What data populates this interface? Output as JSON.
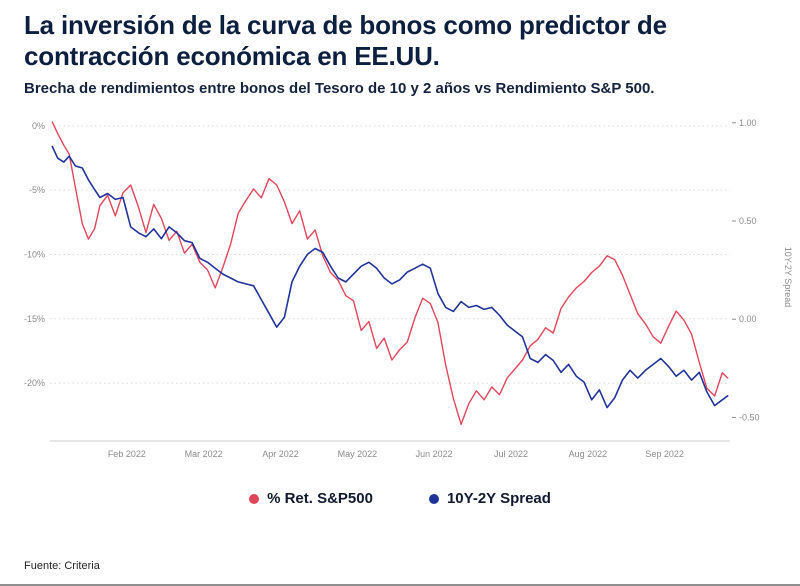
{
  "colors": {
    "red": "#e0465a",
    "blue": "#20339b",
    "title": "#0c1f3f",
    "grid": "#d9d9d9",
    "axis_text": "#8c8c8c",
    "axis_line": "#cccccc"
  },
  "footer": {
    "source": "Fuente: Criteria"
  },
  "chart_data": {
    "type": "line",
    "title": "La inversión de la curva de bonos como predictor de contracción económica en EE.UU.",
    "subtitle": "Brecha de rendimientos entre bonos del Tesoro de 10 y 2 años vs Rendimiento S&P 500.",
    "grid": "horizontal-dotted",
    "legend_position": "bottom-center",
    "x_axis": {
      "range": [
        0,
        8.85
      ],
      "ticks": [
        1,
        2,
        3,
        4,
        5,
        6,
        7,
        8
      ],
      "tick_labels": [
        "Feb 2022",
        "Mar 2022",
        "Apr 2022",
        "May 2022",
        "Jun 2022",
        "Jul 2022",
        "Aug 2022",
        "Sep 2022"
      ]
    },
    "left_axis": {
      "range": [
        -24.5,
        1
      ],
      "ticks": [
        0,
        -5,
        -10,
        -15,
        -20
      ],
      "tick_labels": [
        "0%",
        "-5%",
        "-10%",
        "-15%",
        "-20%"
      ],
      "unit": "percent YTD return"
    },
    "right_axis": {
      "range": [
        -0.62,
        1.05
      ],
      "ticks": [
        1.0,
        0.5,
        0.0,
        -0.5
      ],
      "tick_labels": [
        "1.00",
        "0.50",
        "0.00",
        "-0.50"
      ],
      "title": "10Y-2Y Spread"
    },
    "series": [
      {
        "name": "% Ret. S&P500",
        "axis": "left",
        "color_key": "red",
        "points": [
          [
            0.03,
            0.3
          ],
          [
            0.1,
            -0.6
          ],
          [
            0.18,
            -1.5
          ],
          [
            0.25,
            -2.2
          ],
          [
            0.33,
            -4.8
          ],
          [
            0.42,
            -7.6
          ],
          [
            0.5,
            -8.8
          ],
          [
            0.58,
            -8.0
          ],
          [
            0.65,
            -6.2
          ],
          [
            0.75,
            -5.4
          ],
          [
            0.85,
            -7.0
          ],
          [
            0.95,
            -5.2
          ],
          [
            1.05,
            -4.6
          ],
          [
            1.15,
            -6.3
          ],
          [
            1.25,
            -8.3
          ],
          [
            1.35,
            -6.1
          ],
          [
            1.45,
            -7.2
          ],
          [
            1.55,
            -8.9
          ],
          [
            1.65,
            -8.2
          ],
          [
            1.75,
            -9.9
          ],
          [
            1.85,
            -9.2
          ],
          [
            1.95,
            -10.6
          ],
          [
            2.05,
            -11.2
          ],
          [
            2.15,
            -12.6
          ],
          [
            2.25,
            -11.0
          ],
          [
            2.35,
            -9.2
          ],
          [
            2.45,
            -6.8
          ],
          [
            2.55,
            -5.8
          ],
          [
            2.65,
            -4.9
          ],
          [
            2.75,
            -5.6
          ],
          [
            2.85,
            -4.1
          ],
          [
            2.95,
            -4.6
          ],
          [
            3.05,
            -5.9
          ],
          [
            3.15,
            -7.6
          ],
          [
            3.25,
            -6.6
          ],
          [
            3.35,
            -8.8
          ],
          [
            3.45,
            -8.1
          ],
          [
            3.55,
            -10.1
          ],
          [
            3.65,
            -11.4
          ],
          [
            3.75,
            -12.0
          ],
          [
            3.85,
            -13.2
          ],
          [
            3.95,
            -13.6
          ],
          [
            4.05,
            -15.9
          ],
          [
            4.15,
            -15.2
          ],
          [
            4.25,
            -17.3
          ],
          [
            4.35,
            -16.5
          ],
          [
            4.45,
            -18.2
          ],
          [
            4.55,
            -17.4
          ],
          [
            4.65,
            -16.8
          ],
          [
            4.75,
            -14.9
          ],
          [
            4.85,
            -13.4
          ],
          [
            4.95,
            -13.8
          ],
          [
            5.05,
            -15.3
          ],
          [
            5.15,
            -18.6
          ],
          [
            5.25,
            -21.2
          ],
          [
            5.35,
            -23.2
          ],
          [
            5.45,
            -21.6
          ],
          [
            5.55,
            -20.6
          ],
          [
            5.65,
            -21.3
          ],
          [
            5.75,
            -20.3
          ],
          [
            5.85,
            -20.9
          ],
          [
            5.95,
            -19.6
          ],
          [
            6.05,
            -18.9
          ],
          [
            6.15,
            -18.2
          ],
          [
            6.25,
            -17.1
          ],
          [
            6.35,
            -16.6
          ],
          [
            6.45,
            -15.7
          ],
          [
            6.55,
            -16.1
          ],
          [
            6.65,
            -14.2
          ],
          [
            6.75,
            -13.3
          ],
          [
            6.85,
            -12.6
          ],
          [
            6.95,
            -12.1
          ],
          [
            7.05,
            -11.4
          ],
          [
            7.15,
            -10.9
          ],
          [
            7.25,
            -10.1
          ],
          [
            7.35,
            -10.4
          ],
          [
            7.45,
            -11.6
          ],
          [
            7.55,
            -13.1
          ],
          [
            7.65,
            -14.6
          ],
          [
            7.75,
            -15.4
          ],
          [
            7.85,
            -16.4
          ],
          [
            7.95,
            -16.9
          ],
          [
            8.05,
            -15.6
          ],
          [
            8.15,
            -14.4
          ],
          [
            8.25,
            -15.1
          ],
          [
            8.35,
            -16.2
          ],
          [
            8.45,
            -18.4
          ],
          [
            8.55,
            -20.4
          ],
          [
            8.65,
            -21.0
          ],
          [
            8.75,
            -19.2
          ],
          [
            8.82,
            -19.6
          ]
        ]
      },
      {
        "name": "10Y-2Y Spread",
        "axis": "right",
        "color_key": "blue",
        "points": [
          [
            0.03,
            0.88
          ],
          [
            0.1,
            0.82
          ],
          [
            0.18,
            0.8
          ],
          [
            0.25,
            0.83
          ],
          [
            0.33,
            0.78
          ],
          [
            0.42,
            0.77
          ],
          [
            0.5,
            0.71
          ],
          [
            0.58,
            0.66
          ],
          [
            0.65,
            0.62
          ],
          [
            0.75,
            0.64
          ],
          [
            0.85,
            0.61
          ],
          [
            0.95,
            0.62
          ],
          [
            1.05,
            0.47
          ],
          [
            1.15,
            0.44
          ],
          [
            1.25,
            0.42
          ],
          [
            1.35,
            0.46
          ],
          [
            1.45,
            0.41
          ],
          [
            1.55,
            0.47
          ],
          [
            1.65,
            0.44
          ],
          [
            1.75,
            0.4
          ],
          [
            1.85,
            0.39
          ],
          [
            1.95,
            0.31
          ],
          [
            2.05,
            0.29
          ],
          [
            2.15,
            0.26
          ],
          [
            2.25,
            0.23
          ],
          [
            2.35,
            0.21
          ],
          [
            2.45,
            0.19
          ],
          [
            2.55,
            0.18
          ],
          [
            2.65,
            0.17
          ],
          [
            2.75,
            0.1
          ],
          [
            2.85,
            0.03
          ],
          [
            2.95,
            -0.04
          ],
          [
            3.05,
            0.01
          ],
          [
            3.15,
            0.19
          ],
          [
            3.25,
            0.27
          ],
          [
            3.35,
            0.33
          ],
          [
            3.45,
            0.36
          ],
          [
            3.55,
            0.34
          ],
          [
            3.65,
            0.27
          ],
          [
            3.75,
            0.21
          ],
          [
            3.85,
            0.19
          ],
          [
            3.95,
            0.23
          ],
          [
            4.05,
            0.27
          ],
          [
            4.15,
            0.29
          ],
          [
            4.25,
            0.26
          ],
          [
            4.35,
            0.21
          ],
          [
            4.45,
            0.18
          ],
          [
            4.55,
            0.2
          ],
          [
            4.65,
            0.24
          ],
          [
            4.75,
            0.26
          ],
          [
            4.85,
            0.28
          ],
          [
            4.95,
            0.26
          ],
          [
            5.05,
            0.13
          ],
          [
            5.15,
            0.06
          ],
          [
            5.25,
            0.04
          ],
          [
            5.35,
            0.09
          ],
          [
            5.45,
            0.06
          ],
          [
            5.55,
            0.07
          ],
          [
            5.65,
            0.05
          ],
          [
            5.75,
            0.06
          ],
          [
            5.85,
            0.02
          ],
          [
            5.95,
            -0.03
          ],
          [
            6.05,
            -0.06
          ],
          [
            6.15,
            -0.09
          ],
          [
            6.25,
            -0.2
          ],
          [
            6.35,
            -0.22
          ],
          [
            6.45,
            -0.18
          ],
          [
            6.55,
            -0.21
          ],
          [
            6.65,
            -0.27
          ],
          [
            6.75,
            -0.23
          ],
          [
            6.85,
            -0.29
          ],
          [
            6.95,
            -0.32
          ],
          [
            7.05,
            -0.41
          ],
          [
            7.15,
            -0.36
          ],
          [
            7.25,
            -0.45
          ],
          [
            7.35,
            -0.4
          ],
          [
            7.45,
            -0.31
          ],
          [
            7.55,
            -0.26
          ],
          [
            7.65,
            -0.3
          ],
          [
            7.75,
            -0.26
          ],
          [
            7.85,
            -0.23
          ],
          [
            7.95,
            -0.2
          ],
          [
            8.05,
            -0.24
          ],
          [
            8.15,
            -0.29
          ],
          [
            8.25,
            -0.26
          ],
          [
            8.35,
            -0.31
          ],
          [
            8.45,
            -0.27
          ],
          [
            8.55,
            -0.37
          ],
          [
            8.65,
            -0.44
          ],
          [
            8.75,
            -0.41
          ],
          [
            8.82,
            -0.39
          ]
        ]
      }
    ]
  }
}
